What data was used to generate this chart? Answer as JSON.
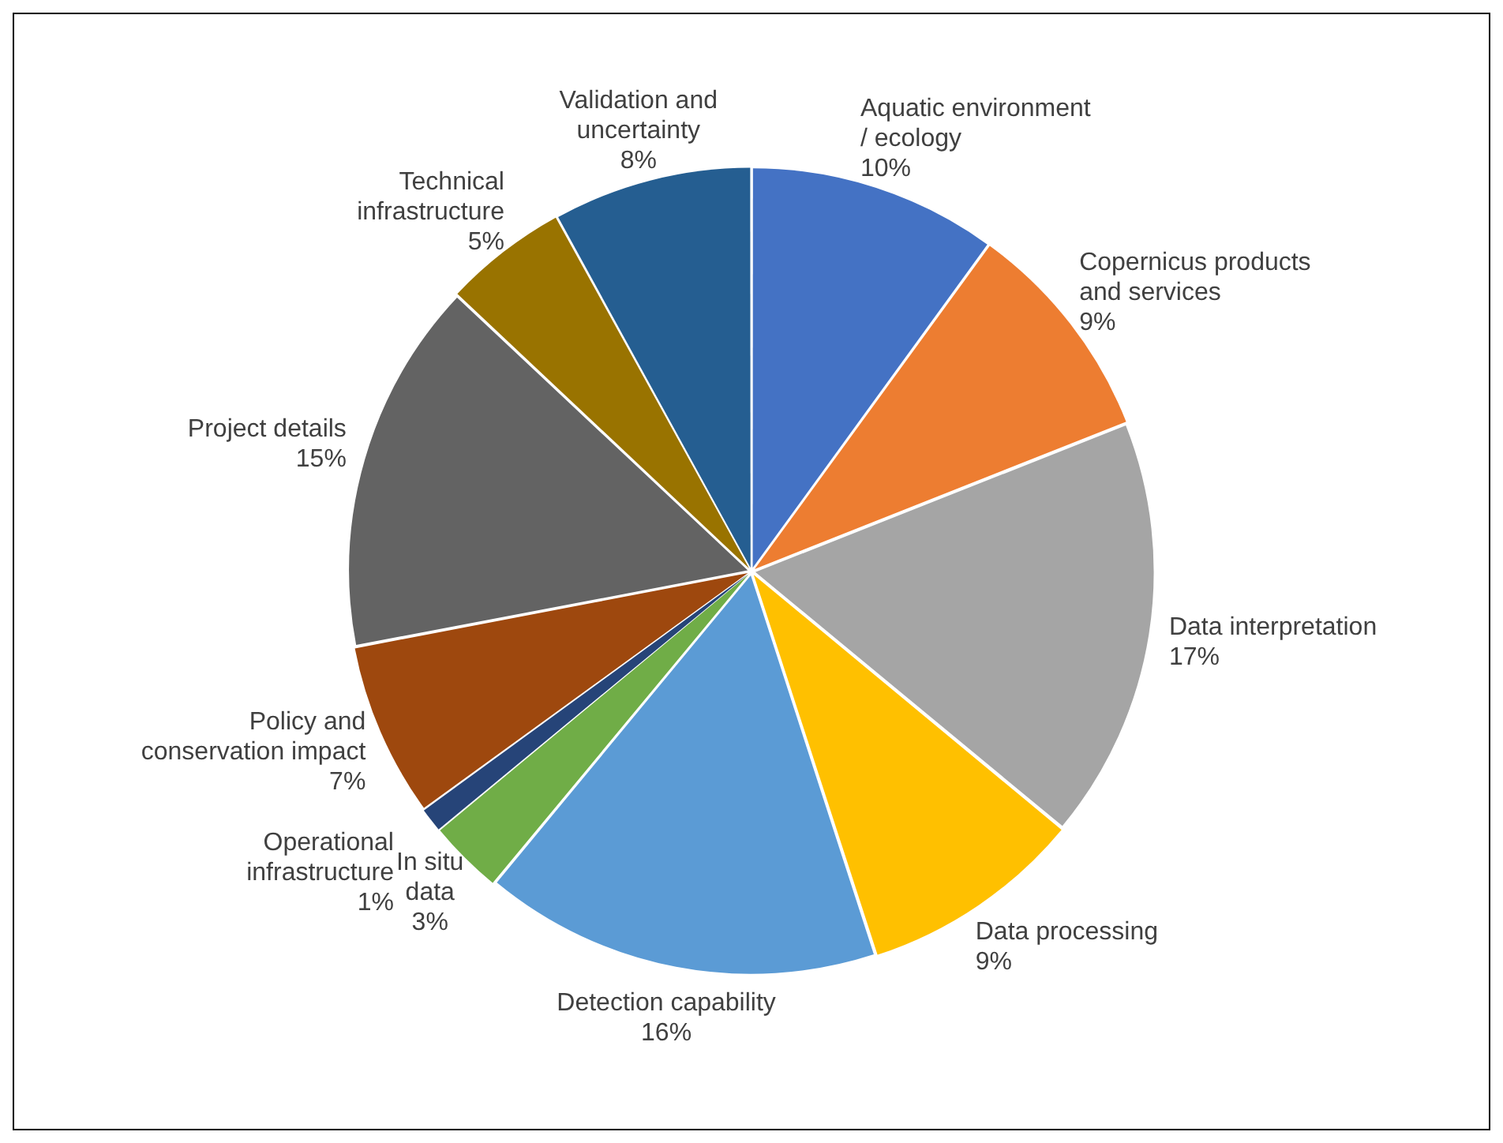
{
  "chart_data": {
    "type": "pie",
    "categories": [
      "Aquatic environment / ecology",
      "Copernicus products and services",
      "Data interpretation",
      "Data processing",
      "Detection capability",
      "In situ data",
      "Operational infrastructure",
      "Policy and conservation impact",
      "Project details",
      "Technical infrastructure",
      "Validation and uncertainty"
    ],
    "values": [
      10,
      9,
      17,
      9,
      16,
      3,
      1,
      7,
      15,
      5,
      8
    ],
    "value_labels": [
      "10%",
      "9%",
      "17%",
      "9%",
      "16%",
      "3%",
      "1%",
      "7%",
      "15%",
      "5%",
      "8%"
    ],
    "colors": [
      "#4472c4",
      "#ed7d31",
      "#a5a5a5",
      "#ffc000",
      "#5b9bd5",
      "#70ad47",
      "#264478",
      "#9e480e",
      "#636363",
      "#997300",
      "#255e91"
    ],
    "legend": false
  }
}
